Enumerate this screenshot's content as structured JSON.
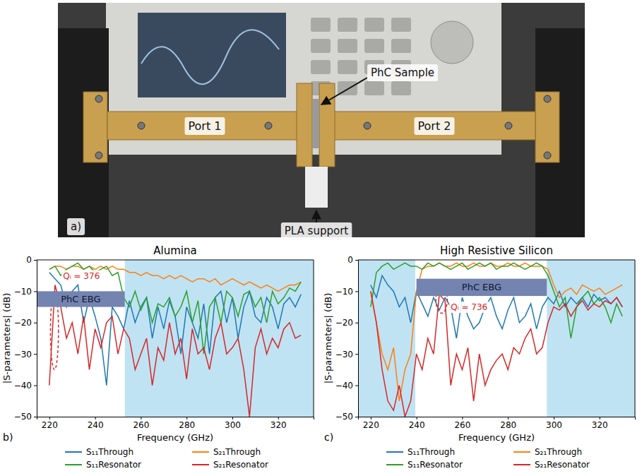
{
  "photo": {
    "letter": "a)",
    "labels": [
      "PhC Sample",
      "Port 1",
      "Port 2",
      "PLA support"
    ]
  },
  "chart_data": [
    {
      "type": "line",
      "title": "Alumina",
      "panel_label": "b)",
      "x_label": "Frequency (GHz)",
      "y_label": "|S-parameters| (dB)",
      "xlim": [
        214.5,
        335.5
      ],
      "ylim": [
        -50,
        0
      ],
      "xticks": [
        220,
        240,
        260,
        280,
        300,
        320
      ],
      "yticks": [
        {
          "value": -50,
          "label": "−50"
        },
        {
          "value": -40,
          "label": "−40"
        },
        {
          "value": -30,
          "label": "−30"
        },
        {
          "value": -20,
          "label": "−20"
        },
        {
          "value": -10,
          "label": "−10"
        },
        0
      ],
      "grid": false,
      "legend": "below",
      "shaded_ranges": [
        [
          253,
          335.5
        ]
      ],
      "bands": [
        {
          "text": "PhC EBG",
          "x": [
            214.5,
            253
          ],
          "y": [
            -15,
            -10
          ]
        }
      ],
      "annotations": [
        {
          "text": "Qₗ = 376",
          "x": 226,
          "y": -6,
          "color": "#d62728",
          "ellipse": {
            "x": [
              220.5,
              224
            ],
            "y": [
              -35,
              -10
            ]
          }
        }
      ],
      "x": [
        220,
        222.5,
        225,
        227.5,
        230,
        232.5,
        235,
        237.5,
        240,
        242.5,
        245,
        247.5,
        250,
        252.5,
        255,
        257.5,
        260,
        262.5,
        265,
        267.5,
        270,
        272.5,
        275,
        277.5,
        280,
        282.5,
        285,
        287.5,
        290,
        292.5,
        295,
        297.5,
        300,
        302.5,
        305,
        307.5,
        310,
        312.5,
        315,
        317.5,
        320,
        322.5,
        325,
        327.5,
        330
      ],
      "series": [
        {
          "name": "S₁₁Through",
          "color": "#1f77b4",
          "values": [
            -4,
            -6,
            -8,
            -15,
            -10,
            -8,
            -20,
            -12,
            -18,
            -25,
            -40,
            -15,
            -18,
            -22,
            -13,
            -20,
            -15,
            -12,
            -25,
            -15,
            -22,
            -13,
            -18,
            -30,
            -15,
            -20,
            -25,
            -14,
            -30,
            -12,
            -10,
            -20,
            -12,
            -25,
            -15,
            -10,
            -18,
            -20,
            -12,
            -15,
            -22,
            -14,
            -12,
            -15,
            -11
          ]
        },
        {
          "name": "S₂₁Through",
          "color": "#ff7f0e",
          "values": [
            -3,
            -2,
            -2,
            -3,
            -2,
            -2,
            -3,
            -2,
            -3,
            -2,
            -3,
            -2,
            -3,
            -3,
            -4,
            -4,
            -5,
            -4,
            -5,
            -5,
            -6,
            -5,
            -6,
            -5,
            -6,
            -7,
            -6,
            -6,
            -7,
            -6,
            -8,
            -7,
            -6,
            -7,
            -8,
            -7,
            -8,
            -9,
            -8,
            -9,
            -10,
            -9,
            -8,
            -8,
            -7
          ]
        },
        {
          "name": "S₁₁Resonator",
          "color": "#2ca02c",
          "values": [
            -3,
            -2,
            -5,
            -3,
            -2,
            -1,
            -3,
            -2,
            -4,
            -3,
            -2,
            -5,
            -4,
            -12,
            -15,
            -10,
            -16,
            -12,
            -20,
            -14,
            -15,
            -12,
            -18,
            -15,
            -10,
            -20,
            -13,
            -30,
            -15,
            -12,
            -20,
            -10,
            -12,
            -18,
            -11,
            -10,
            -15,
            -12,
            -20,
            -10,
            -14,
            -12,
            -9,
            -10,
            -7
          ]
        },
        {
          "name": "S₂₁Resonator",
          "color": "#d62728",
          "values": [
            -40,
            -8,
            -15,
            -25,
            -20,
            -30,
            -18,
            -35,
            -22,
            -28,
            -20,
            -18,
            -30,
            -22,
            -25,
            -35,
            -30,
            -25,
            -40,
            -28,
            -32,
            -20,
            -30,
            -25,
            -38,
            -22,
            -30,
            -28,
            -35,
            -25,
            -20,
            -30,
            -28,
            -25,
            -35,
            -50,
            -28,
            -22,
            -30,
            -25,
            -28,
            -22,
            -20,
            -25,
            -24
          ]
        }
      ]
    },
    {
      "type": "line",
      "title": "High Resistive Silicon",
      "panel_label": "c)",
      "x_label": "Frequency (GHz)",
      "y_label": "|S-parameters| (dB)",
      "xlim": [
        214.5,
        335.5
      ],
      "ylim": [
        -50,
        0
      ],
      "xticks": [
        220,
        240,
        260,
        280,
        300,
        320
      ],
      "yticks": [
        {
          "value": -50,
          "label": "−50"
        },
        {
          "value": -40,
          "label": "−40"
        },
        {
          "value": -30,
          "label": "−30"
        },
        {
          "value": -20,
          "label": "−20"
        },
        {
          "value": -10,
          "label": "−10"
        },
        0
      ],
      "grid": false,
      "legend": "below",
      "shaded_ranges": [
        [
          214.5,
          239.5
        ],
        [
          297,
          335.5
        ]
      ],
      "bands": [
        {
          "text": "PhC EBG",
          "x": [
            240,
            297
          ],
          "y": [
            -11.5,
            -6
          ]
        }
      ],
      "annotations": [
        {
          "text": "Qₗ = 736",
          "x": 255,
          "y": -16,
          "color": "#d62728",
          "ellipse": {
            "x": [
              248.5,
              253.5
            ],
            "y": [
              -17,
              -8
            ]
          }
        }
      ],
      "x": [
        220,
        222.5,
        225,
        227.5,
        230,
        232.5,
        235,
        237.5,
        240,
        242.5,
        245,
        247.5,
        250,
        252.5,
        255,
        257.5,
        260,
        262.5,
        265,
        267.5,
        270,
        272.5,
        275,
        277.5,
        280,
        282.5,
        285,
        287.5,
        290,
        292.5,
        295,
        297.5,
        300,
        302.5,
        305,
        307.5,
        310,
        312.5,
        315,
        317.5,
        320,
        322.5,
        325,
        327.5,
        330
      ],
      "series": [
        {
          "name": "S₁₁Through",
          "color": "#1f77b4",
          "values": [
            -8,
            -12,
            -5,
            -8,
            -10,
            -15,
            -12,
            -20,
            -10,
            -14,
            -18,
            -12,
            -16,
            -12,
            -15,
            -25,
            -12,
            -18,
            -22,
            -20,
            -15,
            -12,
            -18,
            -22,
            -16,
            -12,
            -20,
            -18,
            -14,
            -22,
            -15,
            -12,
            -14,
            -10,
            -15,
            -12,
            -14,
            -12,
            -15,
            -11,
            -13,
            -12,
            -14,
            -12,
            -15
          ]
        },
        {
          "name": "S₂₁Through",
          "color": "#ff7f0e",
          "values": [
            -10,
            -20,
            -30,
            -35,
            -28,
            -45,
            -35,
            -30,
            -10,
            -3,
            -2,
            -2,
            -1,
            -2,
            -2,
            -1,
            -2,
            -2,
            -1,
            -2,
            -2,
            -1,
            -2,
            -2,
            -1,
            -2,
            -2,
            -1,
            -2,
            -2,
            -2,
            -3,
            -8,
            -12,
            -10,
            -9,
            -11,
            -8,
            -9,
            -10,
            -9,
            -11,
            -10,
            -9,
            -8
          ]
        },
        {
          "name": "S₁₁Resonator",
          "color": "#2ca02c",
          "values": [
            -15,
            -4,
            -2,
            -1,
            -3,
            -2,
            -1,
            -2,
            -2,
            -3,
            -1,
            -2,
            -1,
            -2,
            -3,
            -2,
            -1,
            -3,
            -2,
            -1,
            -2,
            -1,
            -3,
            -2,
            -2,
            -1,
            -2,
            -3,
            -2,
            -1,
            -2,
            -5,
            -10,
            -15,
            -12,
            -25,
            -15,
            -12,
            -10,
            -14,
            -12,
            -15,
            -20,
            -14,
            -18
          ]
        },
        {
          "name": "S₂₁Resonator",
          "color": "#d62728",
          "values": [
            -10,
            -20,
            -35,
            -45,
            -48,
            -40,
            -50,
            -45,
            -30,
            -35,
            -25,
            -30,
            -11,
            -13,
            -40,
            -30,
            -35,
            -28,
            -45,
            -30,
            -40,
            -35,
            -32,
            -30,
            -35,
            -28,
            -30,
            -25,
            -22,
            -30,
            -28,
            -20,
            -15,
            -16,
            -14,
            -18,
            -15,
            -13,
            -16,
            -14,
            -15,
            -13,
            -14,
            -12,
            -15
          ]
        }
      ]
    }
  ]
}
